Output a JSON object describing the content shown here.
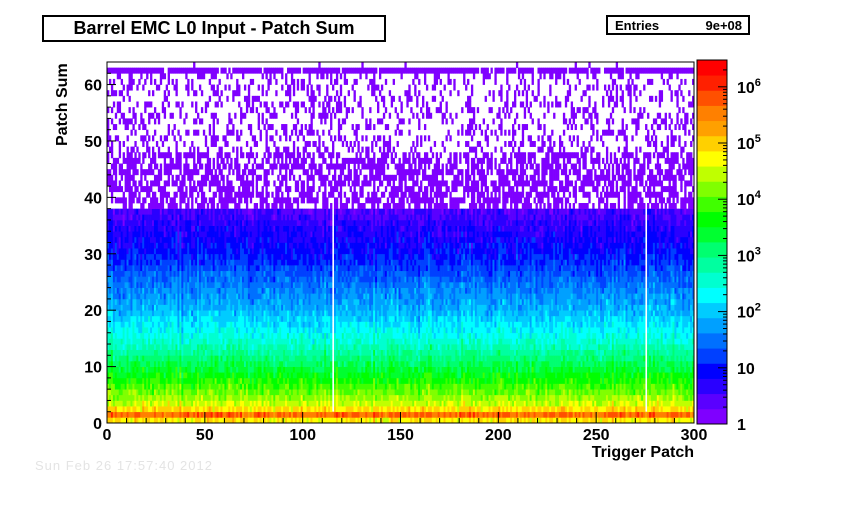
{
  "page": {
    "title": "Barrel EMC L0 Input - Patch Sum",
    "stats": {
      "label": "Entries",
      "value": "9e+08"
    },
    "footer_date": "Sun Feb 26 17:57:40 2012"
  },
  "chart_data": {
    "type": "heatmap",
    "title": "Barrel EMC L0 Input - Patch Sum",
    "xlabel": "Trigger Patch",
    "ylabel": "Patch Sum",
    "xlim": [
      0,
      300
    ],
    "ylim": [
      0,
      64
    ],
    "x_ticks": [
      0,
      50,
      100,
      150,
      200,
      250,
      300
    ],
    "y_ticks": [
      0,
      10,
      20,
      30,
      40,
      50,
      60
    ],
    "x_bins": 300,
    "y_bins": 64,
    "z_scale": "log",
    "z_range": [
      1,
      3000000
    ],
    "z_ticks": [
      {
        "value": 1,
        "label": "1"
      },
      {
        "value": 10,
        "label": "10"
      },
      {
        "value": 100,
        "label": "10^2"
      },
      {
        "value": 1000,
        "label": "10^3"
      },
      {
        "value": 10000,
        "label": "10^4"
      },
      {
        "value": 100000,
        "label": "10^5"
      },
      {
        "value": 1000000,
        "label": "10^6"
      }
    ],
    "entries": "9e+08",
    "palette": [
      "#7f00ff",
      "#5a00ff",
      "#2a00ff",
      "#0000ff",
      "#0040ff",
      "#0070ff",
      "#00a0ff",
      "#00ccff",
      "#00ffff",
      "#00ffd0",
      "#00ffa0",
      "#00ff70",
      "#00ff30",
      "#00ff00",
      "#40ff00",
      "#80ff00",
      "#c0ff00",
      "#ffff00",
      "#ffd000",
      "#ffa000",
      "#ff8000",
      "#ff5000",
      "#ff2000",
      "#ff0000"
    ],
    "count_profile_by_patch_sum": [
      {
        "patch_sum": 0,
        "count": 3000
      },
      {
        "patch_sum": 1,
        "count": 1500000
      },
      {
        "patch_sum": 2,
        "count": 150000
      },
      {
        "patch_sum": 3,
        "count": 40000
      },
      {
        "patch_sum": 5,
        "count": 15000
      },
      {
        "patch_sum": 10,
        "count": 2000
      },
      {
        "patch_sum": 15,
        "count": 300
      },
      {
        "patch_sum": 20,
        "count": 80
      },
      {
        "patch_sum": 25,
        "count": 30
      },
      {
        "patch_sum": 30,
        "count": 10
      },
      {
        "patch_sum": 35,
        "count": 5
      },
      {
        "patch_sum": 40,
        "count": 2
      },
      {
        "patch_sum": 50,
        "count": 1
      },
      {
        "patch_sum": 62,
        "count": 1
      },
      {
        "patch_sum": 63,
        "count": 0
      }
    ],
    "saturation_row_patch_sum": 62,
    "hot_patches": [
      115,
      275
    ],
    "grid": false
  }
}
